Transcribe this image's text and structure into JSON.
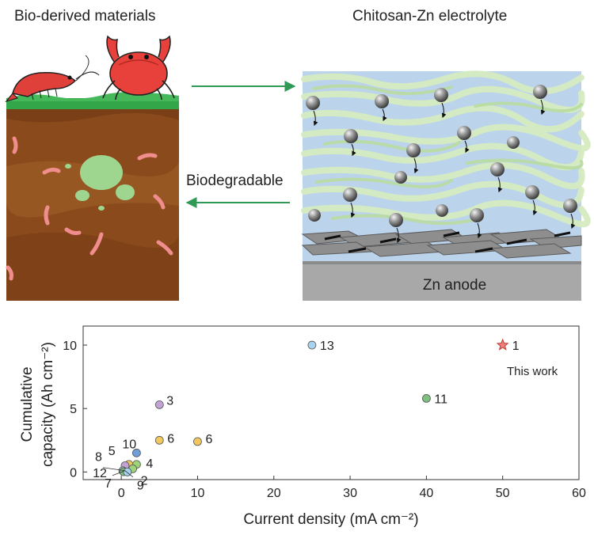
{
  "top": {
    "left_title": "Bio-derived materials",
    "right_title": "Chitosan-Zn electrolyte",
    "arrow_back_label": "Biodegradable",
    "anode_label": "Zn anode"
  },
  "chart_data": {
    "type": "scatter",
    "title": "",
    "xlabel": "Current density (mA cm⁻²)",
    "ylabel_line1": "Cumulative",
    "ylabel_line2": "capacity (Ah cm⁻²)",
    "xlim": [
      -5,
      60
    ],
    "ylim": [
      -0.6,
      11.5
    ],
    "xticks": [
      "0",
      "10",
      "20",
      "30",
      "40",
      "50",
      "60"
    ],
    "xtick_values": [
      0,
      10,
      20,
      30,
      40,
      50,
      60
    ],
    "yticks": [
      "0",
      "5",
      "10"
    ],
    "ytick_values": [
      0,
      5,
      10
    ],
    "grid": false,
    "points": [
      {
        "label": "1",
        "x": 50,
        "y": 10.0,
        "color": "#f08080",
        "marker": "star"
      },
      {
        "label": "13",
        "x": 25,
        "y": 10.0,
        "color": "#a7d3f0",
        "marker": "circle"
      },
      {
        "label": "11",
        "x": 40,
        "y": 5.8,
        "color": "#7fbf7f",
        "marker": "circle"
      },
      {
        "label": "3",
        "x": 5,
        "y": 5.3,
        "color": "#c3a3d6",
        "marker": "circle"
      },
      {
        "label": "6",
        "x": 5,
        "y": 2.5,
        "color": "#f2c75c",
        "marker": "circle"
      },
      {
        "label": "6",
        "x": 10,
        "y": 2.4,
        "color": "#f2c75c",
        "marker": "circle"
      },
      {
        "label": "10",
        "x": 2,
        "y": 1.5,
        "color": "#6f9fd6",
        "marker": "circle"
      },
      {
        "label": "4",
        "x": 2,
        "y": 0.6,
        "color": "#9ed37a",
        "marker": "circle"
      },
      {
        "label": "5",
        "x": 1,
        "y": 0.6,
        "color": "#f2c75c",
        "marker": "circle"
      },
      {
        "label": "8",
        "x": 0.5,
        "y": 0.5,
        "color": "#c3a3d6",
        "marker": "circle"
      },
      {
        "label": "2",
        "x": 1.5,
        "y": 0.25,
        "color": "#9ed37a",
        "marker": "circle"
      },
      {
        "label": "12",
        "x": 0.2,
        "y": 0.1,
        "color": "#a7d3f0",
        "marker": "circle"
      },
      {
        "label": "7",
        "x": 0.3,
        "y": 0.02,
        "color": "#7fbf7f",
        "marker": "circle"
      },
      {
        "label": "9",
        "x": 0.8,
        "y": 0.0,
        "color": "#a7d3f0",
        "marker": "circle"
      }
    ],
    "annotation": "This work"
  }
}
